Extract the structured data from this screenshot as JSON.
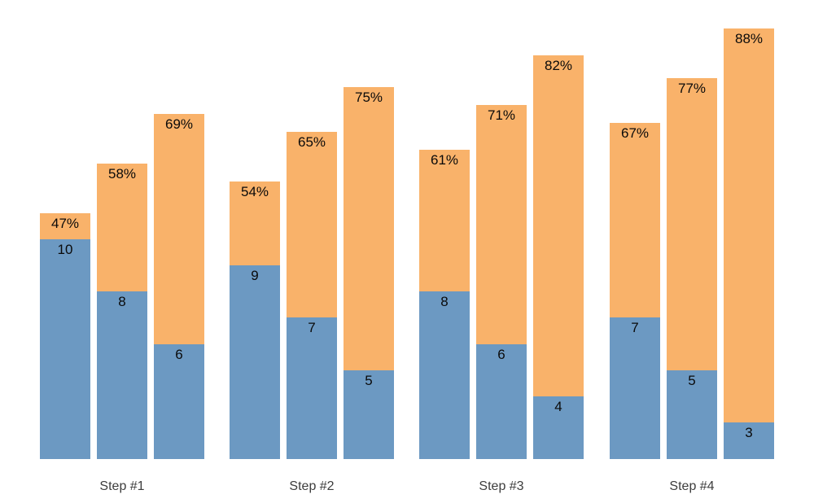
{
  "chart_data": {
    "type": "bar",
    "subtype": "grouped-stacked",
    "title": "",
    "xlabel": "",
    "ylabel": "",
    "legend": "none",
    "grid": false,
    "axes_visible": false,
    "background_color": "#ffffff",
    "bar_colors": {
      "bottom_segment": "#6c99c2",
      "top_segment": "#f9b26a"
    },
    "label_color": "#0a0a0a",
    "axis_label_color": "#3d3d3d",
    "categories": [
      "Step #1",
      "Step #2",
      "Step #3",
      "Step #4"
    ],
    "groups": [
      {
        "label": "Step #1",
        "bars": [
          {
            "percent": 47,
            "percent_label": "47%",
            "base_value": 10,
            "base_label": "10"
          },
          {
            "percent": 58,
            "percent_label": "58%",
            "base_value": 8,
            "base_label": "8"
          },
          {
            "percent": 69,
            "percent_label": "69%",
            "base_value": 6,
            "base_label": "6"
          }
        ]
      },
      {
        "label": "Step #2",
        "bars": [
          {
            "percent": 54,
            "percent_label": "54%",
            "base_value": 9,
            "base_label": "9"
          },
          {
            "percent": 65,
            "percent_label": "65%",
            "base_value": 7,
            "base_label": "7"
          },
          {
            "percent": 75,
            "percent_label": "75%",
            "base_value": 5,
            "base_label": "5"
          }
        ]
      },
      {
        "label": "Step #3",
        "bars": [
          {
            "percent": 61,
            "percent_label": "61%",
            "base_value": 8,
            "base_label": "8"
          },
          {
            "percent": 71,
            "percent_label": "71%",
            "base_value": 6,
            "base_label": "6"
          },
          {
            "percent": 82,
            "percent_label": "82%",
            "base_value": 4,
            "base_label": "4"
          }
        ]
      },
      {
        "label": "Step #4",
        "bars": [
          {
            "percent": 67,
            "percent_label": "67%",
            "base_value": 7,
            "base_label": "7"
          },
          {
            "percent": 77,
            "percent_label": "77%",
            "base_value": 5,
            "base_label": "5"
          },
          {
            "percent": 88,
            "percent_label": "88%",
            "base_value": 3,
            "base_label": "3"
          }
        ]
      }
    ]
  }
}
